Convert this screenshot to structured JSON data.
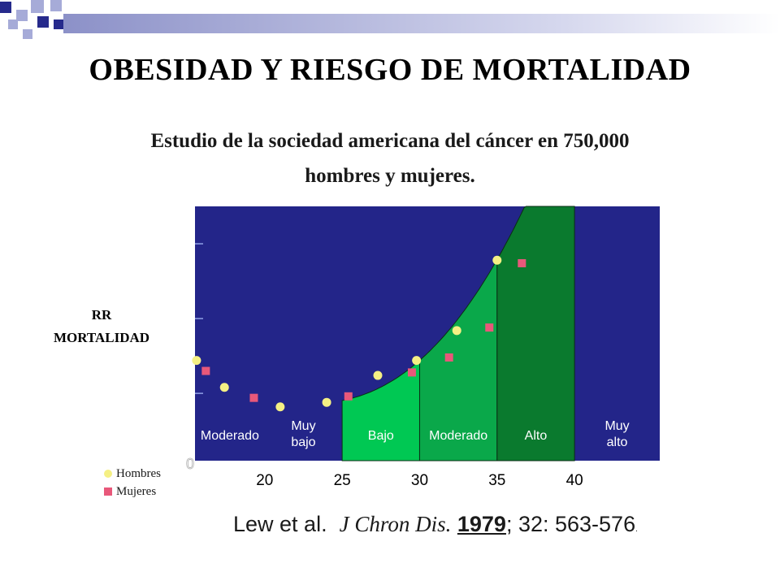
{
  "slide": {
    "title": "OBESIDAD Y RIESGO DE MORTALIDAD",
    "subtitle_line1": "Estudio de la sociedad americana del cáncer en 750,000",
    "subtitle_line2": "hombres y mujeres.",
    "colors": {
      "plot_background": "#232589",
      "curve_fill": "#0c8c3a",
      "curve_line": "#1a1a1a",
      "women_curve": "#c81e1e",
      "men_marker": "#f5f084",
      "women_marker": "#e8587a",
      "deco_navy": "#262a8c",
      "deco_lilac": "#a6abd8"
    }
  },
  "citation": {
    "authors": "Lew et al.",
    "journal": "J Chron Dis.",
    "year": "1979",
    "rest": "; 32: 563-576",
    "tail": "."
  },
  "chart_data": {
    "type": "scatter",
    "title": "",
    "xlabel": "",
    "ylabel": "RR MORTALIDAD",
    "ylabel_line1": "RR",
    "ylabel_line2": "MORTALIDAD",
    "x_ticks": [
      20,
      25,
      30,
      35,
      40
    ],
    "x_tick_labels": [
      "20",
      "25",
      "30",
      "35",
      "40"
    ],
    "xlim": [
      15.5,
      45.5
    ],
    "y_tick_label_zero": "0",
    "grid": false,
    "legend_position": "bottom-left",
    "bands": [
      {
        "label_lines": [
          "Moderado"
        ],
        "from": 15.5,
        "to": 20,
        "color": "#0c8c3a",
        "label_color": "#ffffff"
      },
      {
        "label_lines": [
          "Muy",
          "bajo"
        ],
        "from": 20,
        "to": 25,
        "color": "#00c853",
        "label_color": "#ffffff"
      },
      {
        "label_lines": [
          "Bajo"
        ],
        "from": 25,
        "to": 30,
        "color": "#00c853",
        "label_color": "#ffffff"
      },
      {
        "label_lines": [
          "Moderado"
        ],
        "from": 30,
        "to": 35,
        "color": "#0aa84a",
        "label_color": "#ffffff"
      },
      {
        "label_lines": [
          "Alto"
        ],
        "from": 35,
        "to": 40,
        "color": "#0a7a2e",
        "label_color": "#ffffff"
      },
      {
        "label_lines": [
          "Muy",
          "alto"
        ],
        "from": 40,
        "to": 45.5,
        "color": "#232589",
        "label_color": "#ffffff"
      }
    ],
    "series": [
      {
        "name": "Hombres",
        "marker": "circle",
        "color": "#f5f084",
        "points": [
          [
            15.6,
            0.97
          ],
          [
            17.4,
            0.79
          ],
          [
            21.0,
            0.66
          ],
          [
            24.0,
            0.69
          ],
          [
            27.3,
            0.87
          ],
          [
            29.8,
            0.97
          ],
          [
            32.4,
            1.17
          ],
          [
            35.0,
            1.64
          ]
        ]
      },
      {
        "name": "Mujeres",
        "marker": "square",
        "color": "#e8587a",
        "points": [
          [
            16.2,
            0.9
          ],
          [
            19.3,
            0.72
          ],
          [
            25.4,
            0.73
          ],
          [
            29.5,
            0.89
          ],
          [
            31.9,
            0.99
          ],
          [
            34.5,
            1.19
          ],
          [
            36.6,
            1.62
          ]
        ]
      }
    ],
    "legend": [
      "Hombres",
      "Mujeres"
    ]
  }
}
